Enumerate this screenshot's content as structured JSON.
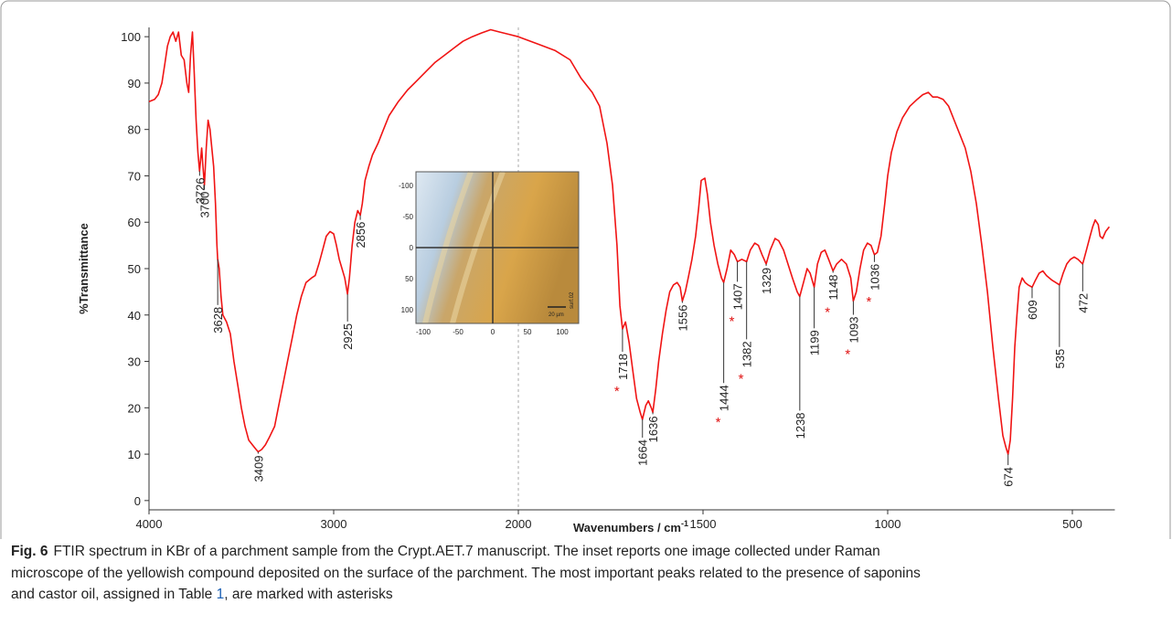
{
  "chart_data": {
    "type": "line",
    "ylabel": "%Transmittance",
    "xlabel": "Wavenumbers / cm",
    "xlabel_sup": "-1",
    "color": "#f01414",
    "xlim": [
      4000,
      385
    ],
    "x_break": 2000,
    "xticks": [
      4000,
      3000,
      2000,
      1500,
      1000,
      500
    ],
    "ylim": [
      -2,
      102
    ],
    "yticks": [
      0,
      10,
      20,
      30,
      40,
      50,
      60,
      70,
      80,
      90,
      100
    ],
    "x": [
      4000,
      3970,
      3950,
      3930,
      3915,
      3900,
      3885,
      3870,
      3855,
      3840,
      3825,
      3810,
      3795,
      3785,
      3775,
      3765,
      3755,
      3745,
      3735,
      3726,
      3715,
      3708,
      3700,
      3690,
      3680,
      3670,
      3660,
      3650,
      3640,
      3632,
      3628,
      3620,
      3610,
      3600,
      3580,
      3560,
      3540,
      3520,
      3500,
      3480,
      3460,
      3440,
      3420,
      3409,
      3390,
      3370,
      3350,
      3320,
      3300,
      3275,
      3250,
      3225,
      3200,
      3175,
      3150,
      3120,
      3100,
      3080,
      3060,
      3040,
      3020,
      3000,
      2985,
      2970,
      2955,
      2940,
      2925,
      2915,
      2900,
      2885,
      2870,
      2856,
      2845,
      2830,
      2810,
      2790,
      2760,
      2730,
      2700,
      2650,
      2600,
      2550,
      2500,
      2450,
      2400,
      2350,
      2300,
      2250,
      2200,
      2150,
      2100,
      2050,
      2000,
      1950,
      1900,
      1860,
      1830,
      1800,
      1780,
      1760,
      1745,
      1733,
      1725,
      1718,
      1710,
      1700,
      1690,
      1680,
      1670,
      1664,
      1655,
      1648,
      1640,
      1636,
      1628,
      1620,
      1610,
      1600,
      1590,
      1580,
      1570,
      1562,
      1556,
      1548,
      1540,
      1530,
      1520,
      1512,
      1505,
      1495,
      1488,
      1480,
      1470,
      1460,
      1450,
      1444,
      1435,
      1425,
      1415,
      1407,
      1395,
      1382,
      1372,
      1360,
      1350,
      1340,
      1329,
      1318,
      1305,
      1295,
      1282,
      1270,
      1258,
      1245,
      1238,
      1228,
      1218,
      1210,
      1199,
      1190,
      1180,
      1170,
      1160,
      1148,
      1138,
      1125,
      1112,
      1100,
      1093,
      1085,
      1075,
      1065,
      1055,
      1045,
      1036,
      1028,
      1018,
      1008,
      1000,
      990,
      975,
      960,
      940,
      920,
      905,
      890,
      878,
      865,
      850,
      835,
      820,
      805,
      790,
      775,
      760,
      745,
      730,
      715,
      700,
      688,
      680,
      674,
      668,
      662,
      656,
      650,
      644,
      636,
      628,
      620,
      609,
      600,
      590,
      580,
      570,
      555,
      545,
      535,
      525,
      515,
      505,
      495,
      485,
      472,
      462,
      452,
      445,
      438,
      430,
      425,
      418,
      410,
      400
    ],
    "values": [
      86,
      86.5,
      87.5,
      90,
      94,
      98,
      100,
      101,
      99,
      101,
      96,
      95,
      90,
      88,
      96,
      101,
      92,
      82,
      75,
      71,
      76,
      72,
      68,
      76,
      82,
      80,
      76,
      72,
      64,
      55,
      52,
      50,
      44,
      40,
      38.5,
      36,
      30,
      25,
      20,
      16,
      13,
      12,
      11,
      10.5,
      11,
      12,
      13.5,
      16,
      20,
      25,
      30,
      35,
      40,
      44,
      47,
      48,
      48.5,
      51,
      54,
      57,
      58,
      57.5,
      55,
      52,
      50,
      48,
      44.5,
      48,
      55,
      60,
      62.5,
      61.5,
      64,
      69,
      72,
      74.5,
      77,
      80,
      83,
      86,
      88.5,
      90.5,
      92.5,
      94.5,
      96,
      97.5,
      99,
      100,
      100.8,
      101.5,
      101,
      100.5,
      100,
      98.5,
      97,
      95,
      91,
      88,
      85,
      77,
      68,
      55,
      42,
      37,
      38.5,
      34,
      28,
      22,
      19,
      17.5,
      20.5,
      21.5,
      20,
      19,
      24,
      30,
      36,
      41,
      45,
      46.5,
      47,
      46,
      43,
      45,
      48,
      52,
      57,
      63,
      69,
      69.5,
      66,
      60,
      55,
      51,
      48,
      47,
      50,
      54,
      53,
      51.5,
      52,
      51.5,
      54,
      55.5,
      55,
      53,
      51,
      54,
      56.5,
      56,
      54,
      51,
      48,
      45,
      44,
      47,
      50,
      49,
      46,
      51,
      53.5,
      54,
      52,
      49.5,
      51,
      52,
      51,
      48,
      43,
      45,
      50,
      54,
      55.5,
      55,
      53,
      53.5,
      57,
      64,
      70,
      75,
      79.5,
      82.5,
      85,
      86.5,
      87.5,
      88,
      87,
      87,
      86.5,
      85,
      82,
      79,
      76,
      71,
      64,
      55,
      45,
      33,
      22,
      14,
      11.5,
      10,
      13,
      22,
      33,
      40,
      46,
      48,
      47,
      46.5,
      46,
      47.5,
      49,
      49.5,
      48.5,
      47.5,
      47,
      46.5,
      49,
      51,
      52,
      52.5,
      52,
      51,
      54,
      57,
      59,
      60.5,
      59.5,
      57,
      56.5,
      58,
      59
    ],
    "marker": "*",
    "peaks": [
      {
        "x": 3726,
        "marked": false
      },
      {
        "x": 3700,
        "marked": false
      },
      {
        "x": 3628,
        "marked": false
      },
      {
        "x": 3409,
        "marked": false
      },
      {
        "x": 2925,
        "marked": false
      },
      {
        "x": 2856,
        "marked": false
      },
      {
        "x": 1718,
        "marked": true
      },
      {
        "x": 1664,
        "marked": false
      },
      {
        "x": 1636,
        "marked": false
      },
      {
        "x": 1556,
        "marked": false
      },
      {
        "x": 1444,
        "marked": true
      },
      {
        "x": 1407,
        "marked": true
      },
      {
        "x": 1382,
        "marked": true
      },
      {
        "x": 1329,
        "marked": false
      },
      {
        "x": 1238,
        "marked": false
      },
      {
        "x": 1199,
        "marked": false
      },
      {
        "x": 1148,
        "marked": true
      },
      {
        "x": 1093,
        "marked": true
      },
      {
        "x": 1036,
        "marked": true
      },
      {
        "x": 674,
        "marked": false
      },
      {
        "x": 609,
        "marked": false
      },
      {
        "x": 535,
        "marked": false
      },
      {
        "x": 472,
        "marked": false
      }
    ],
    "inset": {
      "xticks": [
        -100,
        -50,
        0,
        50,
        100
      ],
      "yticks": [
        -100,
        -50,
        0,
        50,
        100
      ],
      "scalebar": "20 µm",
      "tag": "surf.02"
    }
  },
  "caption": {
    "label": "Fig. 6",
    "lines": [
      "FTIR spectrum in KBr of a parchment sample from the Crypt.AET.7 manuscript. The inset reports one image collected under Raman",
      "microscope of the yellowish compound deposited on the surface of the parchment. The most important peaks related to the presence of saponins",
      "and castor oil, assigned in Table "
    ],
    "ref": "1",
    "end": ", are marked with asterisks"
  }
}
